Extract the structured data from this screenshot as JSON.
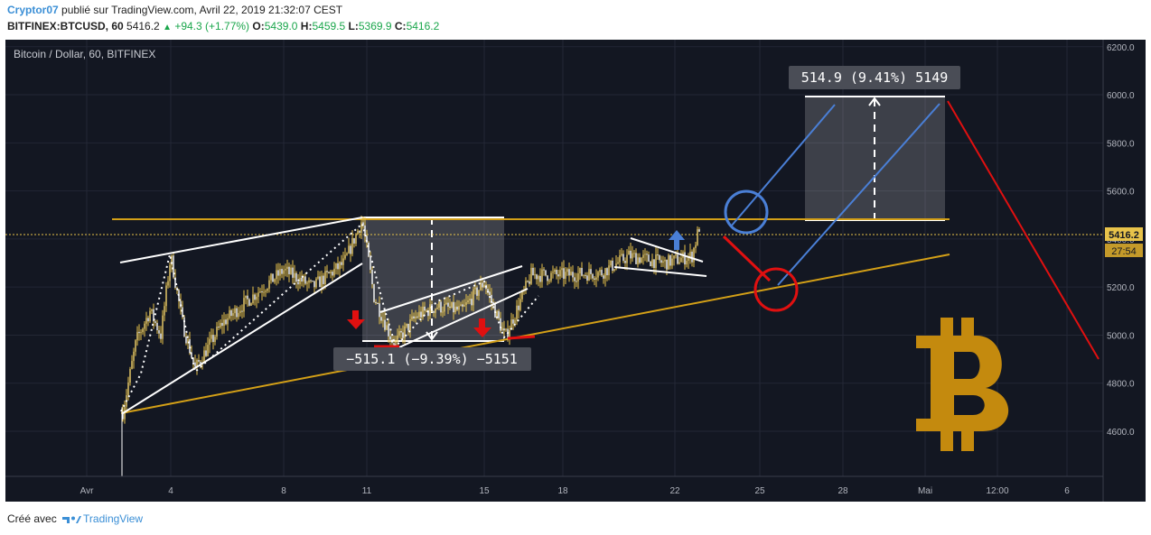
{
  "header": {
    "author": "Cryptor07",
    "published_text": "publié sur TradingView.com, Avril 22, 2019 21:32:07 CEST",
    "symbol": "BITFINEX:BTCUSD, 60",
    "last": "5416.2",
    "change": "+94.3 (+1.77%)",
    "o_label": "O:",
    "o_value": "5439.0",
    "h_label": "H:",
    "h_value": "5459.5",
    "l_label": "L:",
    "l_value": "5369.9",
    "c_label": "C:",
    "c_value": "5416.2"
  },
  "footer": {
    "created_with": "Créé avec",
    "brand": "TradingView"
  },
  "chart_data": {
    "type": "line",
    "title": "Bitcoin / Dollar, 60, BITFINEX",
    "x_ticks": [
      "Avr",
      "4",
      "8",
      "11",
      "15",
      "18",
      "22",
      "25",
      "28",
      "Mai",
      "12:00",
      "6"
    ],
    "y_ticks": [
      "4600.0",
      "4800.0",
      "5000.0",
      "5200.0",
      "5400.0",
      "5600.0",
      "5800.0",
      "6000.0",
      "6200.0"
    ],
    "ylim": [
      4400,
      6220
    ],
    "price_label": "5416.2",
    "countdown_label": "27:54",
    "grid": true,
    "series": [
      {
        "x": [
          "Apr 2",
          "Apr 2.5",
          "Apr 3",
          "Apr 3.5",
          "Apr 4",
          "Apr 4.5",
          "Apr 5",
          "Apr 6",
          "Apr 7",
          "Apr 8",
          "Apr 9",
          "Apr 10",
          "Apr 10.5",
          "Apr 11",
          "Apr 11.5",
          "Apr 12",
          "Apr 13",
          "Apr 14",
          "Apr 15",
          "Apr 16",
          "Apr 17",
          "Apr 18",
          "Apr 19",
          "Apr 20",
          "Apr 21",
          "Apr 22",
          "Apr 22.7"
        ],
        "y": [
          4680,
          4980,
          5100,
          5000,
          5330,
          5050,
          4860,
          5050,
          5150,
          5270,
          5200,
          5300,
          5480,
          5160,
          4960,
          5080,
          5120,
          5100,
          5220,
          5000,
          5250,
          5250,
          5260,
          5330,
          5300,
          5330,
          5450
        ]
      }
    ],
    "annotations": [
      {
        "type": "measure",
        "label": "−515.1 (−9.39%) −5151",
        "from": 5470,
        "to": 4970
      },
      {
        "type": "measure",
        "label": "514.9 (9.41%) 5149",
        "from": 5470,
        "to": 5985
      }
    ],
    "colors": {
      "background": "#131722",
      "candle": "#e8c34a",
      "resistance": "#d4a017",
      "trend": "#ffffff",
      "projection": "#4a7fd6",
      "target": "#e01010",
      "bitcoin": "#c48a0e"
    }
  }
}
